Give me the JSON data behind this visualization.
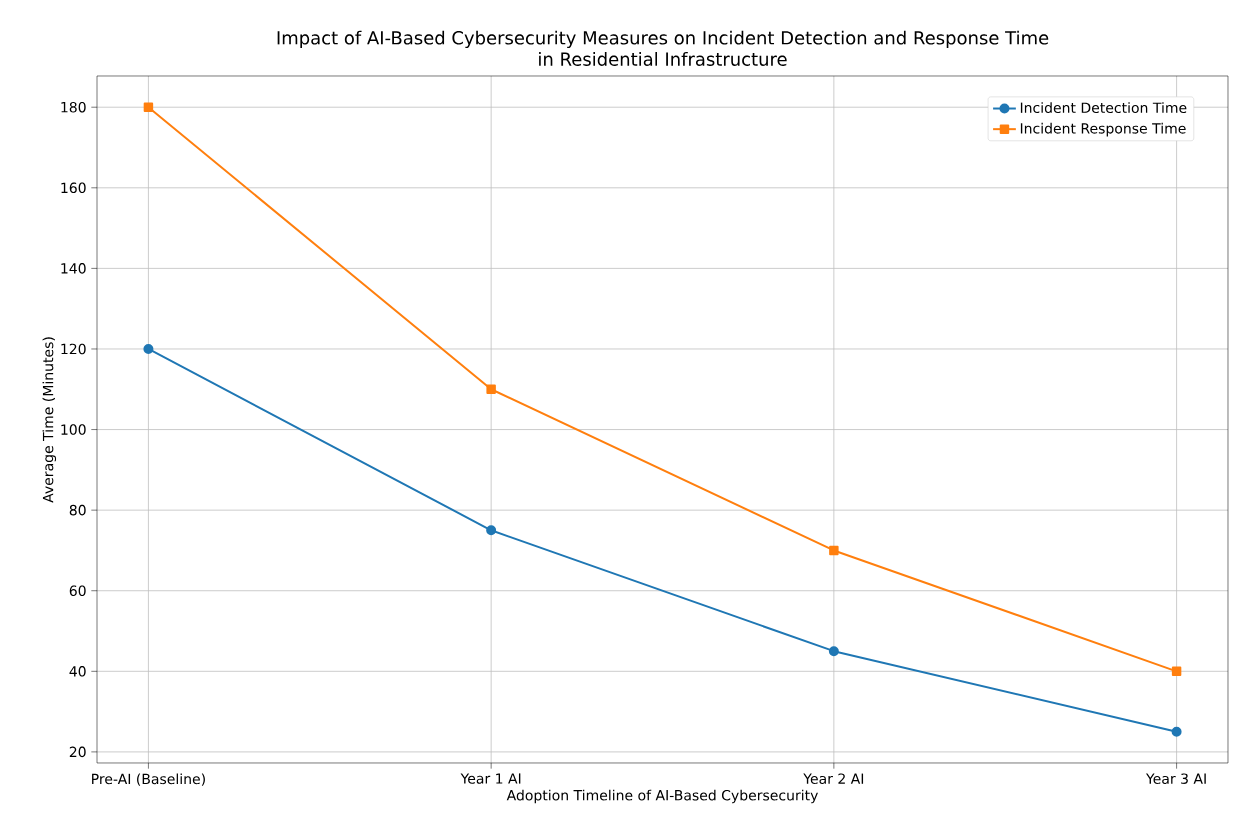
{
  "chart_data": {
    "type": "line",
    "title": "Impact of AI-Based Cybersecurity Measures on Incident Detection and Response Time\nin Residential Infrastructure",
    "xlabel": "Adoption Timeline of AI-Based Cybersecurity",
    "ylabel": "Average Time (Minutes)",
    "categories": [
      "Pre-AI (Baseline)",
      "Year 1 AI",
      "Year 2 AI",
      "Year 3 AI"
    ],
    "series": [
      {
        "name": "Incident Detection Time",
        "color": "#1f77b4",
        "marker": "circle",
        "values": [
          120,
          75,
          45,
          25
        ]
      },
      {
        "name": "Incident Response Time",
        "color": "#ff7f0e",
        "marker": "square",
        "values": [
          180,
          110,
          70,
          40
        ]
      }
    ],
    "ylim": [
      17.25,
      187.75
    ],
    "yticks": [
      20,
      40,
      60,
      80,
      100,
      120,
      140,
      160,
      180
    ],
    "grid": true,
    "legend": "top right",
    "line_style": "solid"
  }
}
